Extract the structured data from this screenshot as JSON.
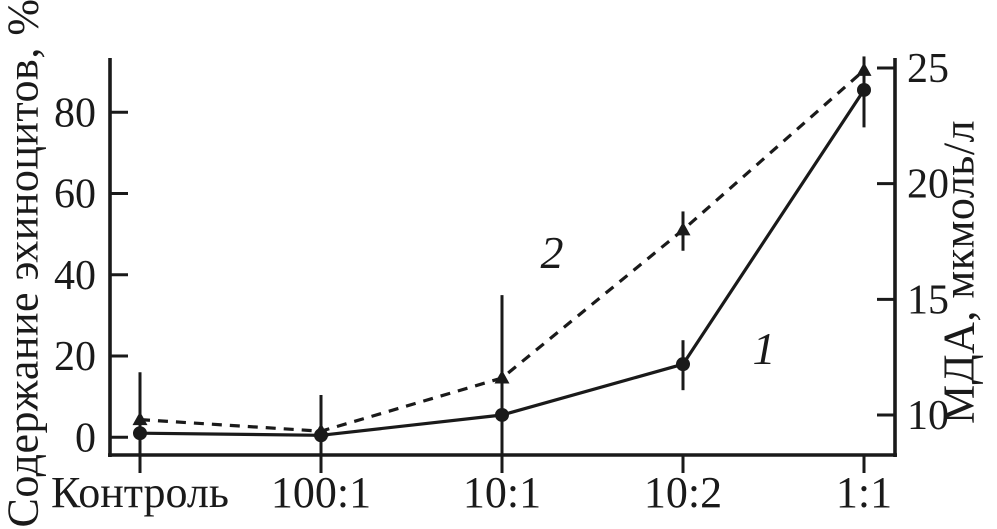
{
  "colors": {
    "ink": "#1a1a1a",
    "background": "#ffffff"
  },
  "chart_data": {
    "type": "line",
    "title": "",
    "categories": [
      "Контроль",
      "100:1",
      "10:1",
      "10:2",
      "1:1"
    ],
    "left_axis": {
      "label": "Содержание эхиноцитов, %",
      "ticks": [
        0,
        20,
        40,
        60,
        80
      ],
      "range": [
        -4.4,
        93.4
      ],
      "side": "left"
    },
    "right_axis": {
      "label": "МДА, мкмоль/л",
      "ticks": [
        10,
        15,
        20,
        25
      ],
      "range": [
        8.3,
        25.4
      ],
      "side": "right"
    },
    "grid": false,
    "legend": "inline-annotations",
    "series": [
      {
        "name": "1",
        "axis": "left",
        "line": "solid",
        "marker": "circle",
        "values": [
          1.0,
          0.5,
          5.5,
          18.0,
          85.5
        ],
        "error_bars": [
          {
            "lo": -7.3,
            "hi": 16.0
          },
          {
            "lo": -7.6,
            "hi": 10.4
          },
          {
            "lo": -8.1,
            "hi": 35.0
          },
          {
            "lo": 11.6,
            "hi": 23.9
          },
          {
            "lo": 76.3,
            "hi": 93.5
          }
        ]
      },
      {
        "name": "2",
        "axis": "right",
        "line": "dashed",
        "marker": "triangle",
        "values": [
          9.8,
          9.3,
          11.6,
          18.0,
          24.9
        ],
        "error_bars": [
          null,
          null,
          null,
          {
            "lo": 17.1,
            "hi": 18.8
          },
          {
            "lo": 24.0,
            "hi": 25.5
          }
        ]
      }
    ],
    "annotations": [
      {
        "text": "1",
        "series": "1"
      },
      {
        "text": "2",
        "series": "2"
      }
    ]
  }
}
